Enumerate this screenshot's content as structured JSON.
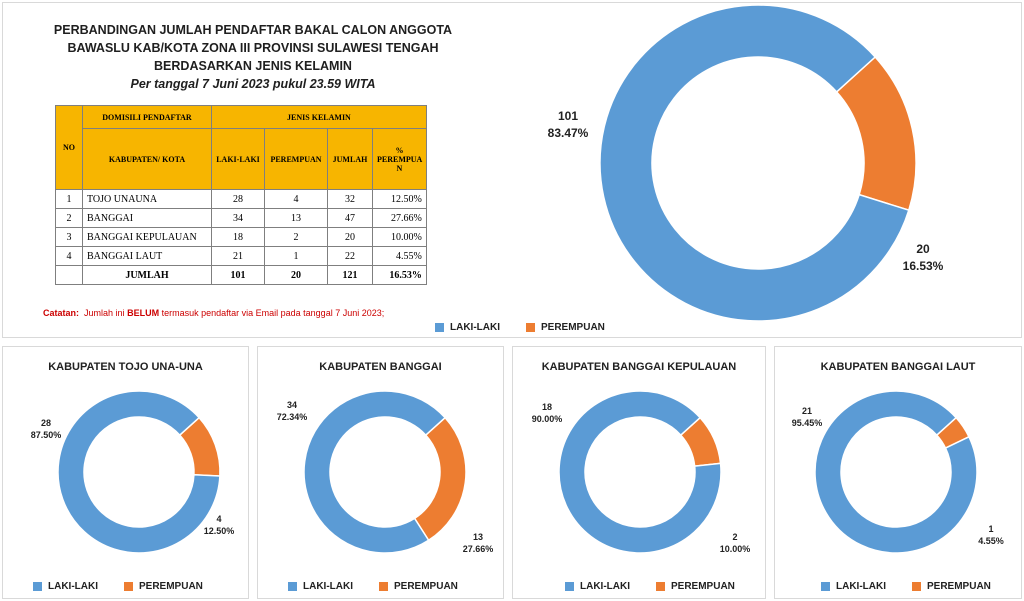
{
  "header": {
    "title_lines": [
      "PERBANDINGAN JUMLAH PENDAFTAR BAKAL CALON ANGGOTA",
      "BAWASLU KAB/KOTA ZONA III PROVINSI SULAWESI TENGAH",
      "BERDASARKAN JENIS KELAMIN"
    ],
    "subtitle": "Per tanggal 7 Juni 2023 pukul 23.59 WITA"
  },
  "table": {
    "h_no": "NO",
    "h_domisili": "DOMISILI PENDAFTAR",
    "h_kab": "KABUPATEN/ KOTA",
    "h_jenis": "JENIS KELAMIN",
    "h_laki": "LAKI-LAKI",
    "h_perempuan": "PEREMPUAN",
    "h_jumlah": "JUMLAH",
    "h_pct": "% PEREMPUA N",
    "rows": [
      {
        "no": "1",
        "kab": "TOJO UNAUNA",
        "laki": "28",
        "perempuan": "4",
        "jumlah": "32",
        "pct": "12.50%"
      },
      {
        "no": "2",
        "kab": "BANGGAI",
        "laki": "34",
        "perempuan": "13",
        "jumlah": "47",
        "pct": "27.66%"
      },
      {
        "no": "3",
        "kab": "BANGGAI KEPULAUAN",
        "laki": "18",
        "perempuan": "2",
        "jumlah": "20",
        "pct": "10.00%"
      },
      {
        "no": "4",
        "kab": "BANGGAI LAUT",
        "laki": "21",
        "perempuan": "1",
        "jumlah": "22",
        "pct": "4.55%"
      }
    ],
    "total": {
      "label": "JUMLAH",
      "laki": "101",
      "perempuan": "20",
      "jumlah": "121",
      "pct": "16.53%"
    }
  },
  "note": {
    "label": "Catatan:",
    "pre": "Jumlah ini",
    "bold": "BELUM",
    "post": "termasuk pendaftar via Email pada tanggal 7 Juni 2023;"
  },
  "colors": {
    "laki": "#5b9bd5",
    "perempuan": "#ed7d31",
    "header": "#f7b500",
    "note": "#cc0000"
  },
  "chart_data": [
    {
      "type": "pie",
      "title": "",
      "labels": [
        "LAKI-LAKI",
        "PEREMPUAN"
      ],
      "values": [
        101,
        20
      ],
      "value_labels": [
        "101",
        "20"
      ],
      "percent_labels": [
        "83.47%",
        "16.53%"
      ],
      "legend": "bottom"
    },
    {
      "type": "pie",
      "title": "KABUPATEN TOJO UNA-UNA",
      "labels": [
        "LAKI-LAKI",
        "PEREMPUAN"
      ],
      "values": [
        28,
        4
      ],
      "value_labels": [
        "28",
        "4"
      ],
      "percent_labels": [
        "87.50%",
        "12.50%"
      ],
      "legend": "bottom"
    },
    {
      "type": "pie",
      "title": "KABUPATEN BANGGAI",
      "labels": [
        "LAKI-LAKI",
        "PEREMPUAN"
      ],
      "values": [
        34,
        13
      ],
      "value_labels": [
        "34",
        "13"
      ],
      "percent_labels": [
        "72.34%",
        "27.66%"
      ],
      "legend": "bottom"
    },
    {
      "type": "pie",
      "title": "KABUPATEN BANGGAI KEPULAUAN",
      "labels": [
        "LAKI-LAKI",
        "PEREMPUAN"
      ],
      "values": [
        18,
        2
      ],
      "value_labels": [
        "18",
        "2"
      ],
      "percent_labels": [
        "90.00%",
        "10.00%"
      ],
      "legend": "bottom"
    },
    {
      "type": "pie",
      "title": "KABUPATEN BANGGAI LAUT",
      "labels": [
        "LAKI-LAKI",
        "PEREMPUAN"
      ],
      "values": [
        21,
        1
      ],
      "value_labels": [
        "21",
        "1"
      ],
      "percent_labels": [
        "95.45%",
        "4.55%"
      ],
      "legend": "bottom"
    }
  ]
}
